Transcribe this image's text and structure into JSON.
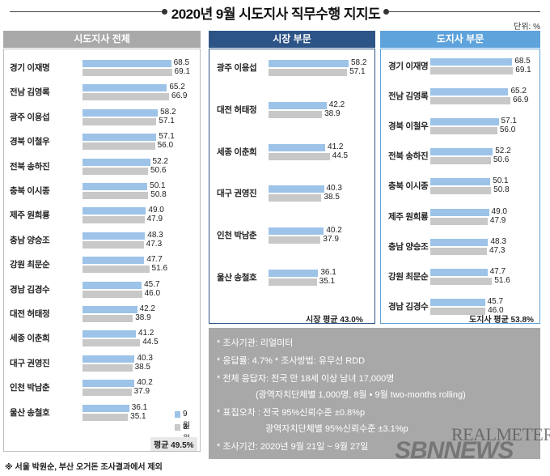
{
  "title": "2020년 9월 시도지사 직무수행 지지도",
  "unit": "단위: %",
  "legend": {
    "sep": "9월",
    "aug": "8월"
  },
  "colors": {
    "sep": "#9dc3e8",
    "aug": "#c8c8c8",
    "mayor_header": "#2d5487",
    "gov_header": "#5ea3dc",
    "all_header": "#a9a9a9"
  },
  "chart_data": [
    {
      "type": "bar",
      "title": "시도지사 전체",
      "categories": [
        "경기 이재명",
        "전남 김영록",
        "광주 이용섭",
        "경북 이철우",
        "전북 송하진",
        "충북 이시종",
        "제주 원희룡",
        "충남 양승조",
        "강원 최문순",
        "경남 김경수",
        "대전 허태정",
        "세종 이춘희",
        "대구 권영진",
        "인천 박남춘",
        "울산 송철호"
      ],
      "series": [
        {
          "name": "9월",
          "values": [
            68.5,
            65.2,
            58.2,
            57.1,
            52.2,
            50.1,
            49.0,
            48.3,
            47.7,
            45.7,
            42.2,
            41.2,
            40.3,
            40.2,
            36.1
          ]
        },
        {
          "name": "8월",
          "values": [
            69.1,
            66.9,
            57.1,
            56.0,
            50.6,
            50.8,
            47.9,
            47.3,
            51.6,
            46.0,
            38.9,
            44.5,
            38.5,
            37.9,
            35.1
          ]
        }
      ],
      "average": "평균 49.5%"
    },
    {
      "type": "bar",
      "title": "시장 부문",
      "categories": [
        "광주 이용섭",
        "대전 허태정",
        "세종 이춘희",
        "대구 권영진",
        "인천 박남춘",
        "울산 송철호"
      ],
      "series": [
        {
          "name": "9월",
          "values": [
            58.2,
            42.2,
            41.2,
            40.3,
            40.2,
            36.1
          ]
        },
        {
          "name": "8월",
          "values": [
            57.1,
            38.9,
            44.5,
            38.5,
            37.9,
            35.1
          ]
        }
      ],
      "average": "시장 평균 43.0%"
    },
    {
      "type": "bar",
      "title": "도지사 부문",
      "categories": [
        "경기 이재명",
        "전남 김영록",
        "경북 이철우",
        "전북 송하진",
        "충북 이시종",
        "제주 원희룡",
        "충남 양승조",
        "강원 최문순",
        "경남 김경수"
      ],
      "series": [
        {
          "name": "9월",
          "values": [
            68.5,
            65.2,
            57.1,
            52.2,
            50.1,
            49.0,
            48.3,
            47.7,
            45.7
          ]
        },
        {
          "name": "8월",
          "values": [
            69.1,
            66.9,
            56.0,
            50.6,
            50.8,
            47.9,
            47.3,
            51.6,
            46.0
          ]
        }
      ],
      "average": "도지사 평균 53.8%"
    }
  ],
  "notes": [
    "* 조사기관: 리얼미터",
    "* 응답률: 4.7% * 조사방법: 유무선 RDD",
    "* 전체 응답자: 전국 만 18세 이상 남녀 17,000명",
    "(광역자치단체별 1,000명, 8월 • 9월 two-months rolling)",
    "* 표집오차 : 전국 95%신뢰수준 ±0.8%p",
    "광역자치단체별 95%신뢰수준 ±3.1%p",
    "* 조사기간: 2020년 9월 21일 ~ 9월 27일"
  ],
  "footnote": "※ 서울 박원순, 부산 오거돈 조사결과에서 제외",
  "watermark": {
    "line1": "REALMETER",
    "line2": "SBNNEWS"
  }
}
